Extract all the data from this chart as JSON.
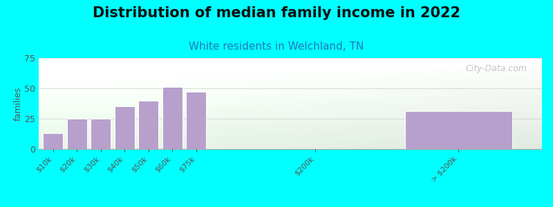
{
  "title": "Distribution of median family income in 2022",
  "subtitle": "White residents in Welchland, TN",
  "ylabel": "families",
  "background_color": "#00ffff",
  "bar_color": "#b8a0cc",
  "bar_edge_color": "#ffffff",
  "categories": [
    "$10k",
    "$20k",
    "$30k",
    "$40k",
    "$50k",
    "$60k",
    "$75k",
    "$200k",
    "> $200k"
  ],
  "values": [
    13,
    25,
    25,
    35,
    40,
    51,
    47,
    0,
    31
  ],
  "positions": [
    0,
    1,
    2,
    3,
    4,
    5,
    6,
    11,
    17
  ],
  "bar_widths": [
    0.85,
    0.85,
    0.85,
    0.85,
    0.85,
    0.85,
    0.85,
    0.85,
    4.5
  ],
  "ylim": [
    0,
    75
  ],
  "yticks": [
    0,
    25,
    50,
    75
  ],
  "xlim": [
    -0.6,
    20.5
  ],
  "watermark": "City-Data.com",
  "title_fontsize": 15,
  "subtitle_fontsize": 11,
  "ylabel_fontsize": 9,
  "tick_fontsize": 8,
  "gradient_left_color": "#d8edd8",
  "gradient_right_color": "#f8fff8",
  "gradient_top_color": "#ffffff"
}
